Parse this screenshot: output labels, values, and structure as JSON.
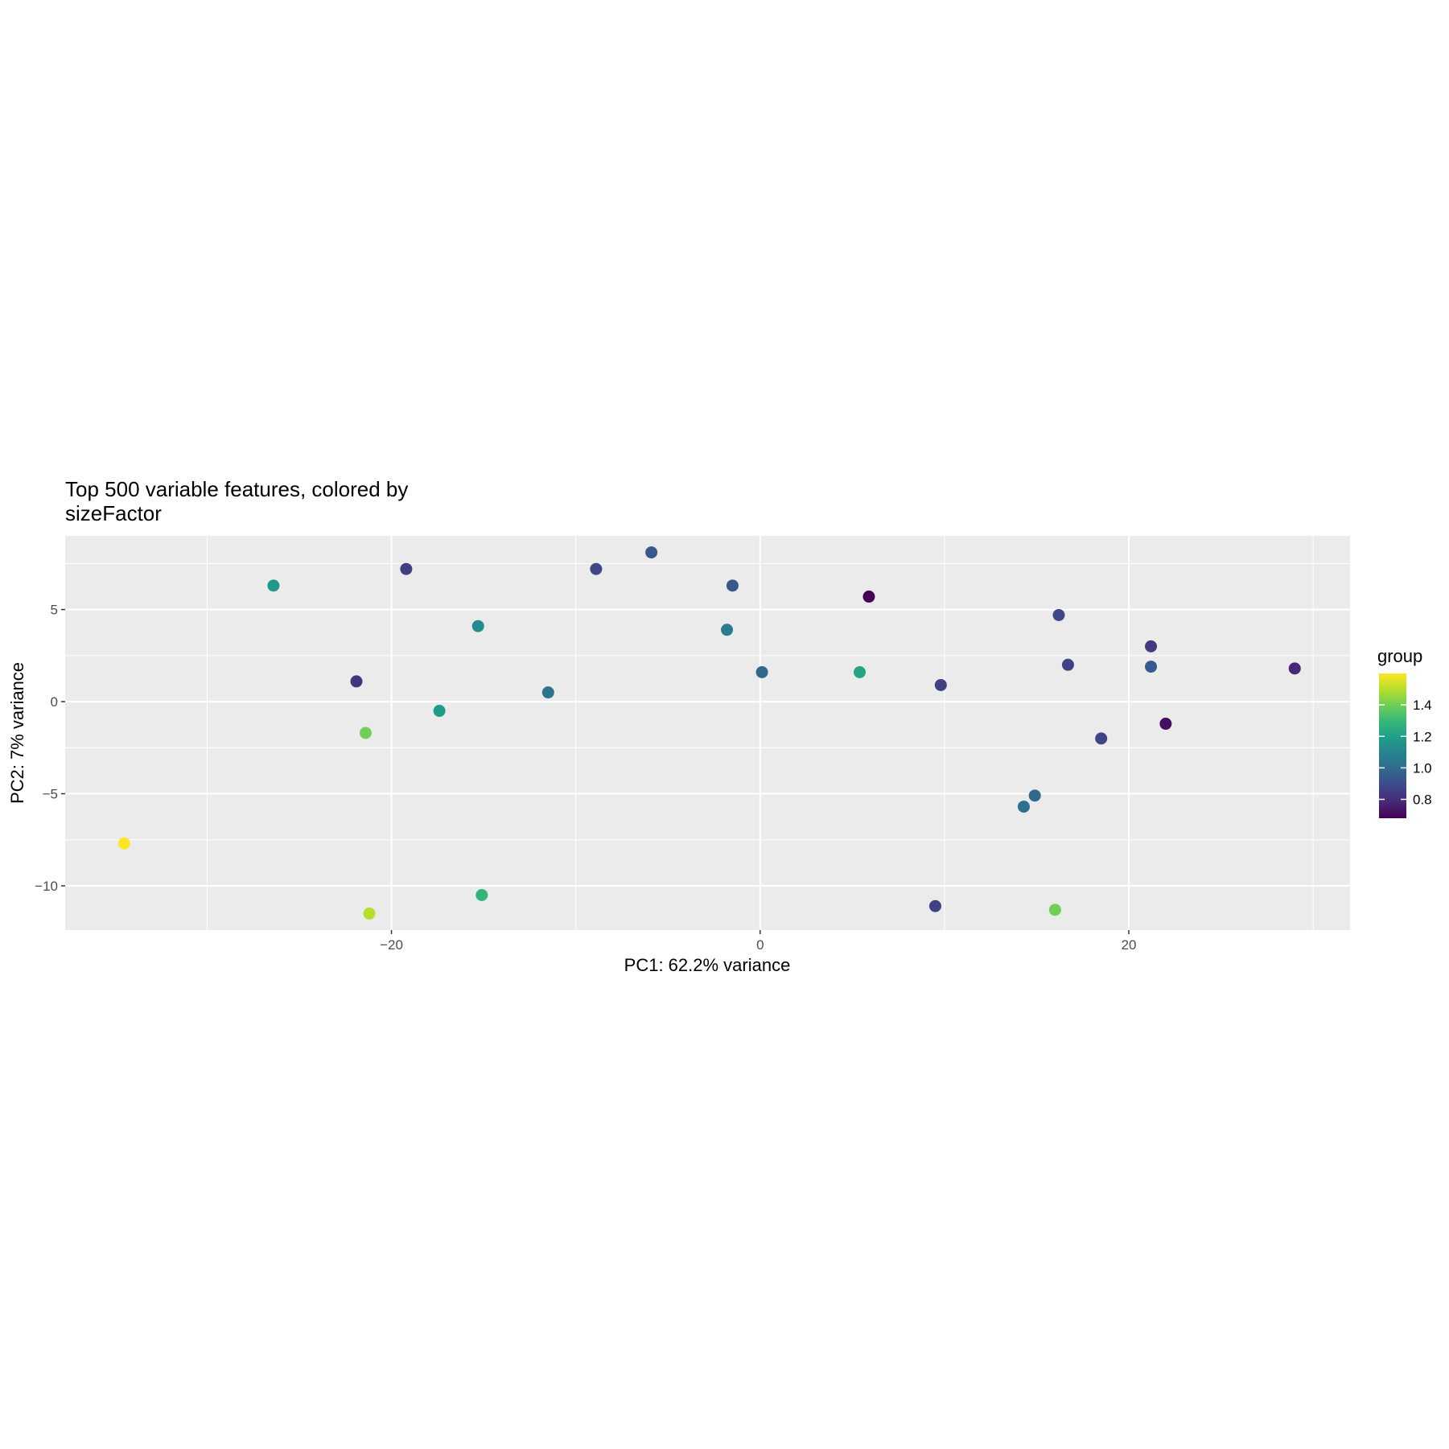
{
  "chart_data": {
    "type": "scatter",
    "title_lines": [
      "Top 500 variable features, colored by",
      "sizeFactor"
    ],
    "xlabel": "PC1: 62.2% variance",
    "ylabel": "PC2: 7% variance",
    "xlim": [
      -37.7,
      32
    ],
    "ylim": [
      -12.4,
      9.0
    ],
    "x_ticks": [
      -20,
      0,
      20
    ],
    "x_tick_labels": [
      "−20",
      "0",
      "20"
    ],
    "y_ticks": [
      -10,
      -5,
      0,
      5
    ],
    "y_tick_labels": [
      "−10",
      "−5",
      "0",
      "5"
    ],
    "x_minor": [
      -30,
      -10,
      10,
      30
    ],
    "y_minor": [
      -7.5,
      -2.5,
      2.5,
      7.5
    ],
    "grid": true,
    "legend": {
      "title": "group",
      "position": "right",
      "min": 0.68,
      "max": 1.6,
      "ticks": [
        0.8,
        1.0,
        1.2,
        1.4
      ],
      "tick_labels": [
        "0.8",
        "1.0",
        "1.2",
        "1.4"
      ],
      "colors": [
        "#440154",
        "#482878",
        "#3e4989",
        "#31688e",
        "#26828e",
        "#1f9e89",
        "#35b779",
        "#6ece58",
        "#b5de2b",
        "#fde725"
      ]
    },
    "points": [
      {
        "x": -34.5,
        "y": -7.7,
        "c": 1.6
      },
      {
        "x": -26.4,
        "y": 6.3,
        "c": 1.17
      },
      {
        "x": -21.9,
        "y": 1.1,
        "c": 0.82
      },
      {
        "x": -21.4,
        "y": -1.7,
        "c": 1.4
      },
      {
        "x": -21.2,
        "y": -11.5,
        "c": 1.5
      },
      {
        "x": -19.2,
        "y": 7.2,
        "c": 0.85
      },
      {
        "x": -17.4,
        "y": -0.5,
        "c": 1.18
      },
      {
        "x": -15.3,
        "y": 4.1,
        "c": 1.13
      },
      {
        "x": -15.1,
        "y": -10.5,
        "c": 1.28
      },
      {
        "x": -11.5,
        "y": 0.5,
        "c": 1.03
      },
      {
        "x": -8.9,
        "y": 7.2,
        "c": 0.88
      },
      {
        "x": -5.9,
        "y": 8.1,
        "c": 0.93
      },
      {
        "x": -1.8,
        "y": 3.9,
        "c": 1.07
      },
      {
        "x": -1.5,
        "y": 6.3,
        "c": 0.93
      },
      {
        "x": 0.1,
        "y": 1.6,
        "c": 0.99
      },
      {
        "x": 5.4,
        "y": 1.6,
        "c": 1.22
      },
      {
        "x": 5.9,
        "y": 5.7,
        "c": 0.68
      },
      {
        "x": 9.5,
        "y": -11.1,
        "c": 0.86
      },
      {
        "x": 9.8,
        "y": 0.9,
        "c": 0.86
      },
      {
        "x": 14.3,
        "y": -5.7,
        "c": 1.02
      },
      {
        "x": 14.9,
        "y": -5.1,
        "c": 0.99
      },
      {
        "x": 16.0,
        "y": -11.3,
        "c": 1.4
      },
      {
        "x": 16.2,
        "y": 4.7,
        "c": 0.88
      },
      {
        "x": 16.7,
        "y": 2.0,
        "c": 0.86
      },
      {
        "x": 18.5,
        "y": -2.0,
        "c": 0.87
      },
      {
        "x": 21.2,
        "y": 3.0,
        "c": 0.84
      },
      {
        "x": 21.2,
        "y": 1.9,
        "c": 0.94
      },
      {
        "x": 22.0,
        "y": -1.2,
        "c": 0.72
      },
      {
        "x": 29.0,
        "y": 1.8,
        "c": 0.78
      }
    ]
  }
}
